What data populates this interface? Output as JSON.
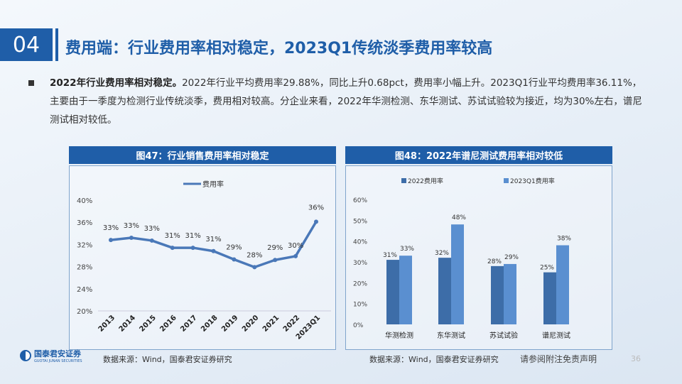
{
  "header": {
    "section_number": "04",
    "title": "费用端：行业费用率相对稳定，2023Q1传统淡季费用率较高"
  },
  "bullet": {
    "lead": "2022年行业费用率相对稳定。",
    "body": "2022年行业平均费用率29.88%，同比上升0.68pct，费用率小幅上升。2023Q1行业平均费用率36.11%，主要由于一季度为检测行业传统淡季，费用相对较高。分企业来看，2022年华测检测、东华测试、苏试试验较为接近，均为30%左右，谱尼测试相对较低。"
  },
  "colors": {
    "brand": "#1f5ea8",
    "line": "#4a78b8",
    "bar2022": "#3d6da8",
    "bar2023q1": "#5a8fd0"
  },
  "chart_data": [
    {
      "type": "line",
      "panel_title": "图47：行业销售费用率相对稳定",
      "legend": [
        "费用率"
      ],
      "legend_position": "top",
      "categories": [
        "2013",
        "2014",
        "2015",
        "2016",
        "2017",
        "2018",
        "2019",
        "2020",
        "2021",
        "2022",
        "2023Q1"
      ],
      "series": [
        {
          "name": "费用率",
          "values": [
            32.8,
            33.2,
            32.7,
            31.4,
            31.4,
            30.8,
            29.3,
            27.9,
            29.2,
            29.88,
            36.11
          ],
          "data_labels": [
            "33%",
            "33%",
            "33%",
            "31%",
            "31%",
            "31%",
            "29%",
            "28%",
            "29%",
            "30%",
            "36%"
          ]
        }
      ],
      "ylim": [
        20,
        40
      ],
      "yticks": [
        "20%",
        "24%",
        "28%",
        "32%",
        "36%",
        "40%"
      ],
      "grid": false,
      "source": "数据来源：Wind，国泰君安证券研究"
    },
    {
      "type": "bar",
      "panel_title": "图48：2022年谱尼测试费用率相对较低",
      "legend_position": "top",
      "categories": [
        "华测检测",
        "东华测试",
        "苏试试验",
        "谱尼测试"
      ],
      "series": [
        {
          "name": "2022费用率",
          "values": [
            31,
            32,
            28,
            25
          ],
          "data_labels": [
            "31%",
            "32%",
            "28%",
            "25%"
          ]
        },
        {
          "name": "2023Q1费用率",
          "values": [
            33,
            48,
            29,
            38
          ],
          "data_labels": [
            "33%",
            "48%",
            "29%",
            "38%"
          ]
        }
      ],
      "ylim": [
        0,
        60
      ],
      "yticks": [
        "0%",
        "10%",
        "20%",
        "30%",
        "40%",
        "50%",
        "60%"
      ],
      "grid": false,
      "source": "数据来源：Wind，国泰君安证券研究"
    }
  ],
  "footer": {
    "logo_text": "国泰君安证券",
    "logo_sub": "GUOTAI JUNAN SECURITIES",
    "disclaimer": "请参阅附注免责声明",
    "page": "36"
  }
}
